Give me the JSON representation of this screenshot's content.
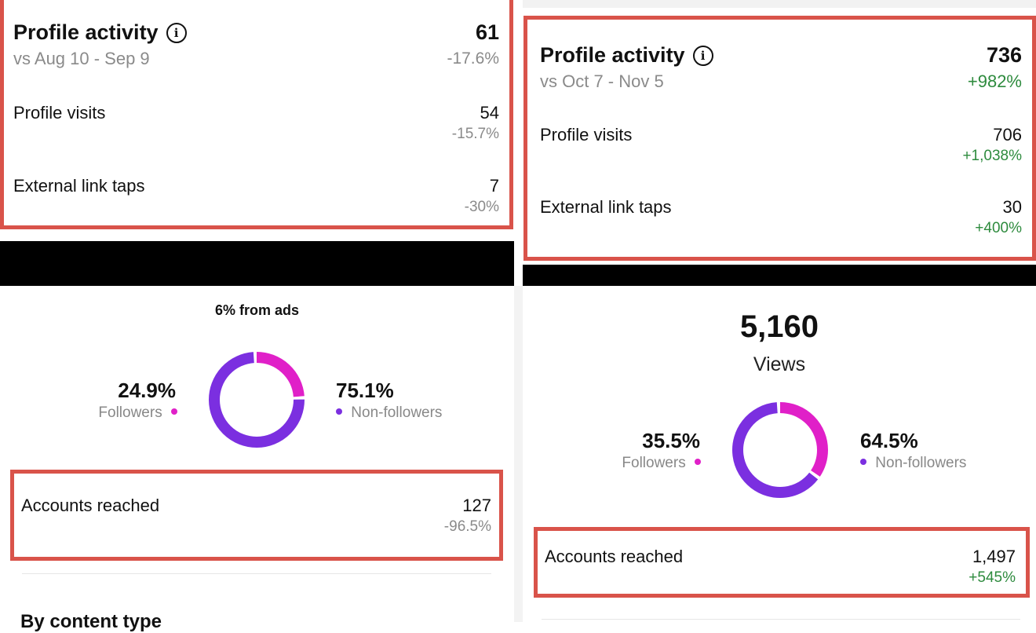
{
  "colors": {
    "red_box": "#d9534a",
    "followers": "#e020c8",
    "non_followers": "#7b2fe0",
    "positive": "#2e8b3e",
    "muted": "#8a8a8a"
  },
  "left_top": {
    "title": "Profile activity",
    "info_icon": "info-circle-icon",
    "period": "vs Aug 10 - Sep 9",
    "total": "61",
    "total_change": "-17.6%",
    "rows": [
      {
        "label": "Profile visits",
        "value": "54",
        "change": "-15.7%"
      },
      {
        "label": "External link taps",
        "value": "7",
        "change": "-30%"
      }
    ]
  },
  "right_top": {
    "title": "Profile activity",
    "info_icon": "info-circle-icon",
    "period": "vs Oct 7 - Nov 5",
    "total": "736",
    "total_change": "+982%",
    "rows": [
      {
        "label": "Profile visits",
        "value": "706",
        "change": "+1,038%"
      },
      {
        "label": "External link taps",
        "value": "30",
        "change": "+400%"
      }
    ]
  },
  "left_bottom": {
    "ads_note": "6% from ads",
    "followers_pct": "24.9%",
    "followers_label": "Followers",
    "nonfollowers_pct": "75.1%",
    "nonfollowers_label": "Non-followers",
    "followers_fraction": 0.249,
    "accounts_label": "Accounts reached",
    "accounts_value": "127",
    "accounts_change": "-96.5%",
    "section_heading": "By content type"
  },
  "right_bottom": {
    "views_value": "5,160",
    "views_label": "Views",
    "followers_pct": "35.5%",
    "followers_label": "Followers",
    "nonfollowers_pct": "64.5%",
    "nonfollowers_label": "Non-followers",
    "followers_fraction": 0.355,
    "accounts_label": "Accounts reached",
    "accounts_value": "1,497",
    "accounts_change": "+545%"
  }
}
